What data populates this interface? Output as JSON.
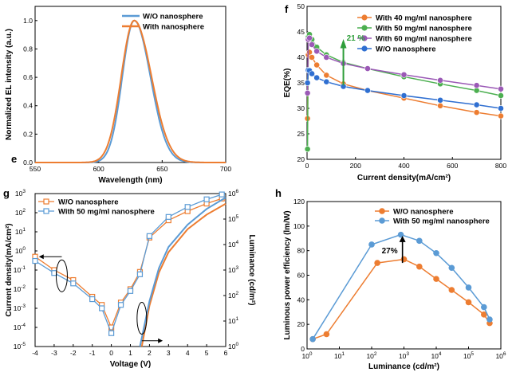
{
  "colors": {
    "orange": "#ED7D31",
    "blue": "#5B9BD5",
    "green": "#4CAF50",
    "purple": "#9B59B6",
    "darkblue": "#2F6FD1"
  },
  "chart_data": [
    {
      "panel": "e",
      "type": "line",
      "xlabel": "Wavelength (nm)",
      "ylabel": "Normalized EL intensity (a.u.)",
      "xlim": [
        550,
        700
      ],
      "ylim": [
        0,
        1.1
      ],
      "xticks": [
        550,
        600,
        650,
        700
      ],
      "yticks": [
        0.0,
        0.2,
        0.4,
        0.6,
        0.8,
        1.0
      ],
      "ytick_labels": [
        "0.0",
        "0.2",
        "0.4",
        "0.6",
        "0.8",
        "1.0"
      ],
      "legend_position": "top-right",
      "series": [
        {
          "name": "W/O  nanosphere",
          "color": "#5B9BD5",
          "peak": 628,
          "fwhm_left": 11,
          "fwhm_right": 15
        },
        {
          "name": "With  nanosphere",
          "color": "#ED7D31",
          "peak": 628,
          "fwhm_left": 12,
          "fwhm_right": 16
        }
      ]
    },
    {
      "panel": "f",
      "type": "line",
      "xlabel": "Current density(mA/cm²)",
      "ylabel": "EQE(%)",
      "xlim": [
        0,
        800
      ],
      "ylim": [
        20,
        50
      ],
      "xticks": [
        0,
        200,
        400,
        600,
        800
      ],
      "yticks": [
        20,
        25,
        30,
        35,
        40,
        45,
        50
      ],
      "legend_position": "top-right",
      "annotation": "21 %",
      "series": [
        {
          "name": "With 40 mg/ml nanosphere",
          "color": "#ED7D31",
          "x": [
            2,
            5,
            10,
            20,
            40,
            80,
            150,
            250,
            400,
            550,
            700,
            800
          ],
          "y": [
            28,
            40.5,
            41,
            40,
            38.5,
            36.5,
            34.8,
            33.5,
            32,
            30.5,
            29.2,
            28.5
          ]
        },
        {
          "name": "With 50 mg/ml nanosphere",
          "color": "#4CAF50",
          "x": [
            2,
            5,
            10,
            20,
            40,
            80,
            150,
            250,
            400,
            550,
            700,
            800
          ],
          "y": [
            22,
            44,
            44.5,
            43.5,
            42,
            40.5,
            39,
            37.8,
            36.2,
            34.8,
            33.5,
            32.5
          ]
        },
        {
          "name": "With 60 mg/ml nanosphere",
          "color": "#9B59B6",
          "x": [
            2,
            5,
            10,
            20,
            40,
            80,
            150,
            250,
            400,
            550,
            700,
            800
          ],
          "y": [
            33,
            43.5,
            43.8,
            42.5,
            41.2,
            40,
            38.8,
            37.8,
            36.6,
            35.5,
            34.5,
            33.8
          ]
        },
        {
          "name": "W/O nanosphere",
          "color": "#2F6FD1",
          "x": [
            2,
            5,
            10,
            20,
            40,
            80,
            150,
            250,
            400,
            550,
            700,
            800
          ],
          "y": [
            35,
            37.5,
            37.4,
            36.8,
            36,
            35.2,
            34.3,
            33.5,
            32.5,
            31.6,
            30.7,
            30
          ]
        }
      ]
    },
    {
      "panel": "g",
      "type": "line",
      "xlabel": "Voltage (V)",
      "ylabel": "Current density(mA/cm²)",
      "ylabel_right": "Luminance (cd/m²)",
      "xlim": [
        -4,
        6
      ],
      "ylim_log": [
        -5,
        3
      ],
      "ylim_right_log": [
        0,
        6
      ],
      "xticks": [
        -4,
        -3,
        -2,
        -1,
        0,
        1,
        2,
        3,
        4,
        5,
        6
      ],
      "yticks_exp": [
        -5,
        -4,
        -3,
        -2,
        -1,
        0,
        1,
        2,
        3
      ],
      "yticks_right_exp": [
        0,
        1,
        2,
        3,
        4,
        5,
        6
      ],
      "legend_position": "top-left",
      "series": [
        {
          "name": "W/O nanosphere",
          "color": "#ED7D31",
          "x": [
            -4,
            -3,
            -2,
            -1,
            -0.5,
            0,
            0.5,
            1,
            1.5,
            2,
            3,
            4,
            5,
            5.8
          ],
          "y": [
            0.5,
            0.1,
            0.03,
            0.004,
            0.0015,
            0.0001,
            0.002,
            0.01,
            0.08,
            5,
            40,
            120,
            300,
            550
          ]
        },
        {
          "name": "With 50 mg/ml nanosphere",
          "color": "#5B9BD5",
          "x": [
            -4,
            -3,
            -2,
            -1,
            -0.5,
            0,
            0.5,
            1,
            1.5,
            2,
            3,
            4,
            5,
            5.8
          ],
          "y": [
            0.3,
            0.07,
            0.02,
            0.003,
            0.001,
            5e-05,
            0.0015,
            0.008,
            0.06,
            6,
            60,
            200,
            500,
            900
          ]
        }
      ],
      "luminance_series": [
        {
          "name": "W/O nanosphere",
          "color": "#ED7D31",
          "x": [
            1.6,
            2,
            2.5,
            3,
            4,
            5,
            6
          ],
          "y": [
            1,
            40,
            800,
            5000,
            40000,
            150000,
            400000
          ]
        },
        {
          "name": "With 50 mg/ml nanosphere",
          "color": "#5B9BD5",
          "x": [
            1.5,
            2,
            2.5,
            3,
            4,
            5,
            6
          ],
          "y": [
            1,
            60,
            1200,
            8000,
            60000,
            250000,
            700000
          ]
        }
      ]
    },
    {
      "panel": "h",
      "type": "line",
      "xlabel": "Luminance (cd/m²)",
      "ylabel": "Luminous power efficiency (lm/W)",
      "xlim_log": [
        0,
        6
      ],
      "ylim": [
        0,
        120
      ],
      "xticks_exp": [
        0,
        1,
        2,
        3,
        4,
        5,
        6
      ],
      "yticks": [
        0,
        20,
        40,
        60,
        80,
        100,
        120
      ],
      "legend_position": "top-right",
      "annotation": "27%",
      "series": [
        {
          "name": "W/O nanosphere",
          "color": "#ED7D31",
          "x": [
            1.5,
            4,
            150,
            1000,
            3000,
            10000,
            30000,
            100000,
            300000,
            450000
          ],
          "y": [
            8,
            12,
            70,
            73,
            67,
            57,
            48,
            38,
            28,
            21
          ]
        },
        {
          "name": "With 50 mg/ml nanosphere",
          "color": "#5B9BD5",
          "x": [
            1.5,
            100,
            800,
            3000,
            10000,
            30000,
            100000,
            300000,
            450000
          ],
          "y": [
            8,
            85,
            93,
            88,
            78,
            66,
            50,
            34,
            24
          ]
        }
      ]
    }
  ]
}
